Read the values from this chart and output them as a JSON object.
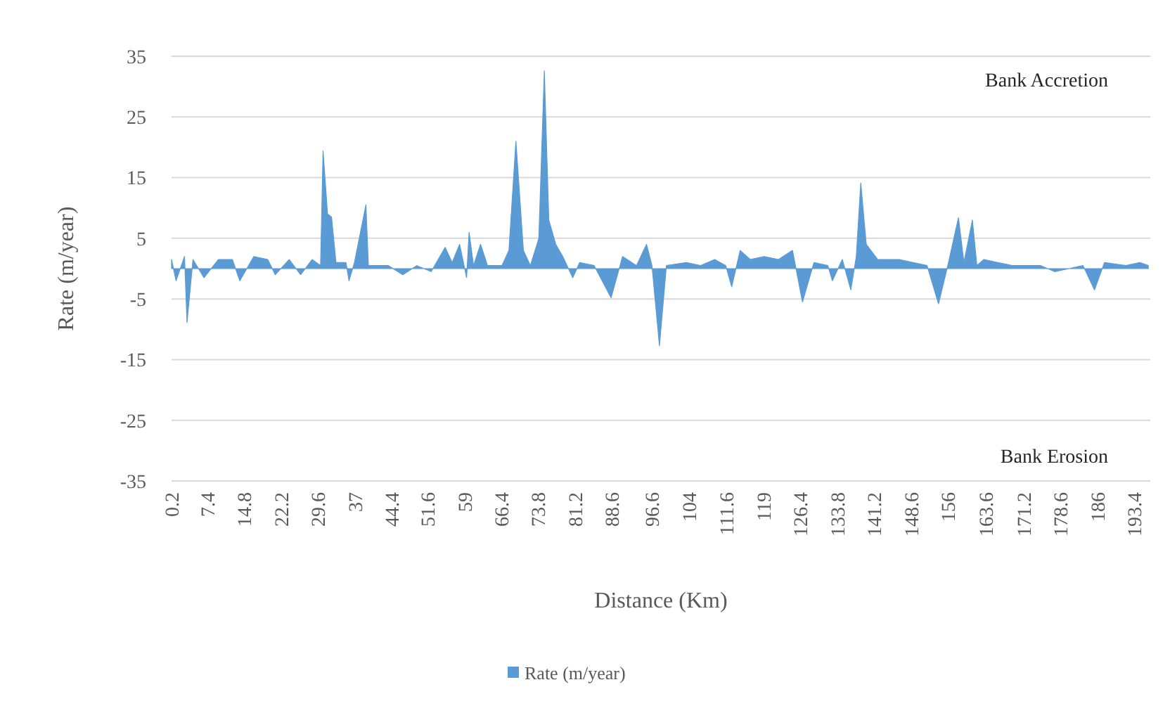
{
  "chart_data": {
    "type": "area",
    "xlabel": "Distance (Km)",
    "ylabel": "Rate (m/year)",
    "annotations": [
      "Bank Accretion",
      "Bank Erosion"
    ],
    "xlim": [
      0.2,
      196.6
    ],
    "ylim": [
      -35,
      35
    ],
    "xticks": [
      0.2,
      7.4,
      14.8,
      22.2,
      29.6,
      37,
      44.4,
      51.6,
      59,
      66.4,
      73.8,
      81.2,
      88.6,
      96.6,
      104,
      111.6,
      119,
      126.4,
      133.8,
      141.2,
      148.6,
      156,
      163.6,
      171.2,
      178.6,
      186,
      193.4
    ],
    "yticks": [
      -35,
      -25,
      -15,
      -5,
      5,
      15,
      25,
      35
    ],
    "grid": "y",
    "legend": "bottom",
    "series": [
      {
        "name": "Rate (m/year)",
        "color": "#5b9bd5",
        "x": [
          0.2,
          1.1,
          2.8,
          3.3,
          4.5,
          6.7,
          9.6,
          12.4,
          13.9,
          16.7,
          19.5,
          21.0,
          23.8,
          26.1,
          28.4,
          30.1,
          30.6,
          31.5,
          32.3,
          33.2,
          35.2,
          35.8,
          36.9,
          39.2,
          39.7,
          43.7,
          46.6,
          49.4,
          52.3,
          55.1,
          56.5,
          58.0,
          59.4,
          59.9,
          60.8,
          62.2,
          63.6,
          66.5,
          67.9,
          69.3,
          70.8,
          72.2,
          73.9,
          75.0,
          75.9,
          77.3,
          78.7,
          80.7,
          82.1,
          85.0,
          88.4,
          90.7,
          93.5,
          95.5,
          96.6,
          98.1,
          99.5,
          103.5,
          106.3,
          109.2,
          111.4,
          112.6,
          114.3,
          116.3,
          119.1,
          122.0,
          124.8,
          126.8,
          129.1,
          131.9,
          132.8,
          134.8,
          136.5,
          137.6,
          138.5,
          139.6,
          141.9,
          146.2,
          149.0,
          151.8,
          154.1,
          156.1,
          158.1,
          159.2,
          160.9,
          161.8,
          163.2,
          166.0,
          168.9,
          174.6,
          177.4,
          183.1,
          185.4,
          187.4,
          191.7,
          194.5,
          196.2
        ],
        "values": [
          1.5,
          -2,
          2,
          -8.9,
          1.5,
          -1.5,
          1.5,
          1.5,
          -2,
          2,
          1.5,
          -1,
          1.5,
          -1,
          1.5,
          0.5,
          19.4,
          9,
          8.5,
          1,
          1,
          -2,
          1,
          10.5,
          0.5,
          0.5,
          -1,
          0.5,
          -0.5,
          3.5,
          1,
          4,
          -1.5,
          6,
          0.5,
          4,
          0.5,
          0.5,
          3,
          21,
          3,
          0.5,
          5,
          32.6,
          8,
          4,
          2,
          -1.5,
          1,
          0.5,
          -4.8,
          2,
          0.5,
          4,
          0.5,
          -12.7,
          0.5,
          1,
          0.5,
          1.5,
          0.5,
          -3,
          3,
          1.5,
          2,
          1.5,
          3,
          -5.5,
          1,
          0.5,
          -2,
          1.5,
          -3.5,
          2,
          14.1,
          4,
          1.5,
          1.5,
          1,
          0.5,
          -5.8,
          1,
          8.4,
          1,
          8,
          0.5,
          1.5,
          1,
          0.5,
          0.5,
          -0.5,
          0.5,
          -3.5,
          1,
          0.5,
          1,
          0.5
        ]
      }
    ]
  }
}
